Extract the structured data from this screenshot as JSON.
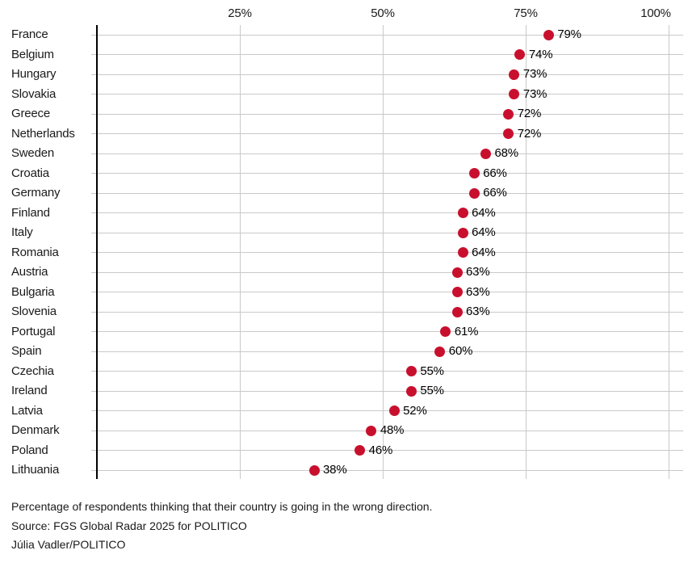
{
  "chart_data": {
    "type": "scatter",
    "subtype": "dot-plot",
    "categories": [
      "France",
      "Belgium",
      "Hungary",
      "Slovakia",
      "Greece",
      "Netherlands",
      "Sweden",
      "Croatia",
      "Germany",
      "Finland",
      "Italy",
      "Romania",
      "Austria",
      "Bulgaria",
      "Slovenia",
      "Portugal",
      "Spain",
      "Czechia",
      "Ireland",
      "Latvia",
      "Denmark",
      "Poland",
      "Lithuania"
    ],
    "values": [
      79,
      74,
      73,
      73,
      72,
      72,
      68,
      66,
      66,
      64,
      64,
      64,
      63,
      63,
      63,
      61,
      60,
      55,
      55,
      52,
      48,
      46,
      38
    ],
    "value_suffix": "%",
    "x_ticks": [
      {
        "label": "25%",
        "value": 25
      },
      {
        "label": "50%",
        "value": 50
      },
      {
        "label": "75%",
        "value": 75
      },
      {
        "label": "100%",
        "value": 100
      }
    ],
    "xlim": [
      0,
      100
    ],
    "grid": true,
    "legend": "none",
    "title": "",
    "xlabel": "",
    "ylabel": "",
    "dot_color": "#c8102e",
    "grid_color": "#c9c9c9",
    "axis_color": "#000000",
    "text_color": "#1a1a1a"
  },
  "footer": {
    "note": "Percentage of respondents thinking that their country is going in the wrong direction.",
    "source": "Source: FGS Global Radar 2025 for POLITICO",
    "credit": "Júlia Vadler/POLITICO"
  }
}
